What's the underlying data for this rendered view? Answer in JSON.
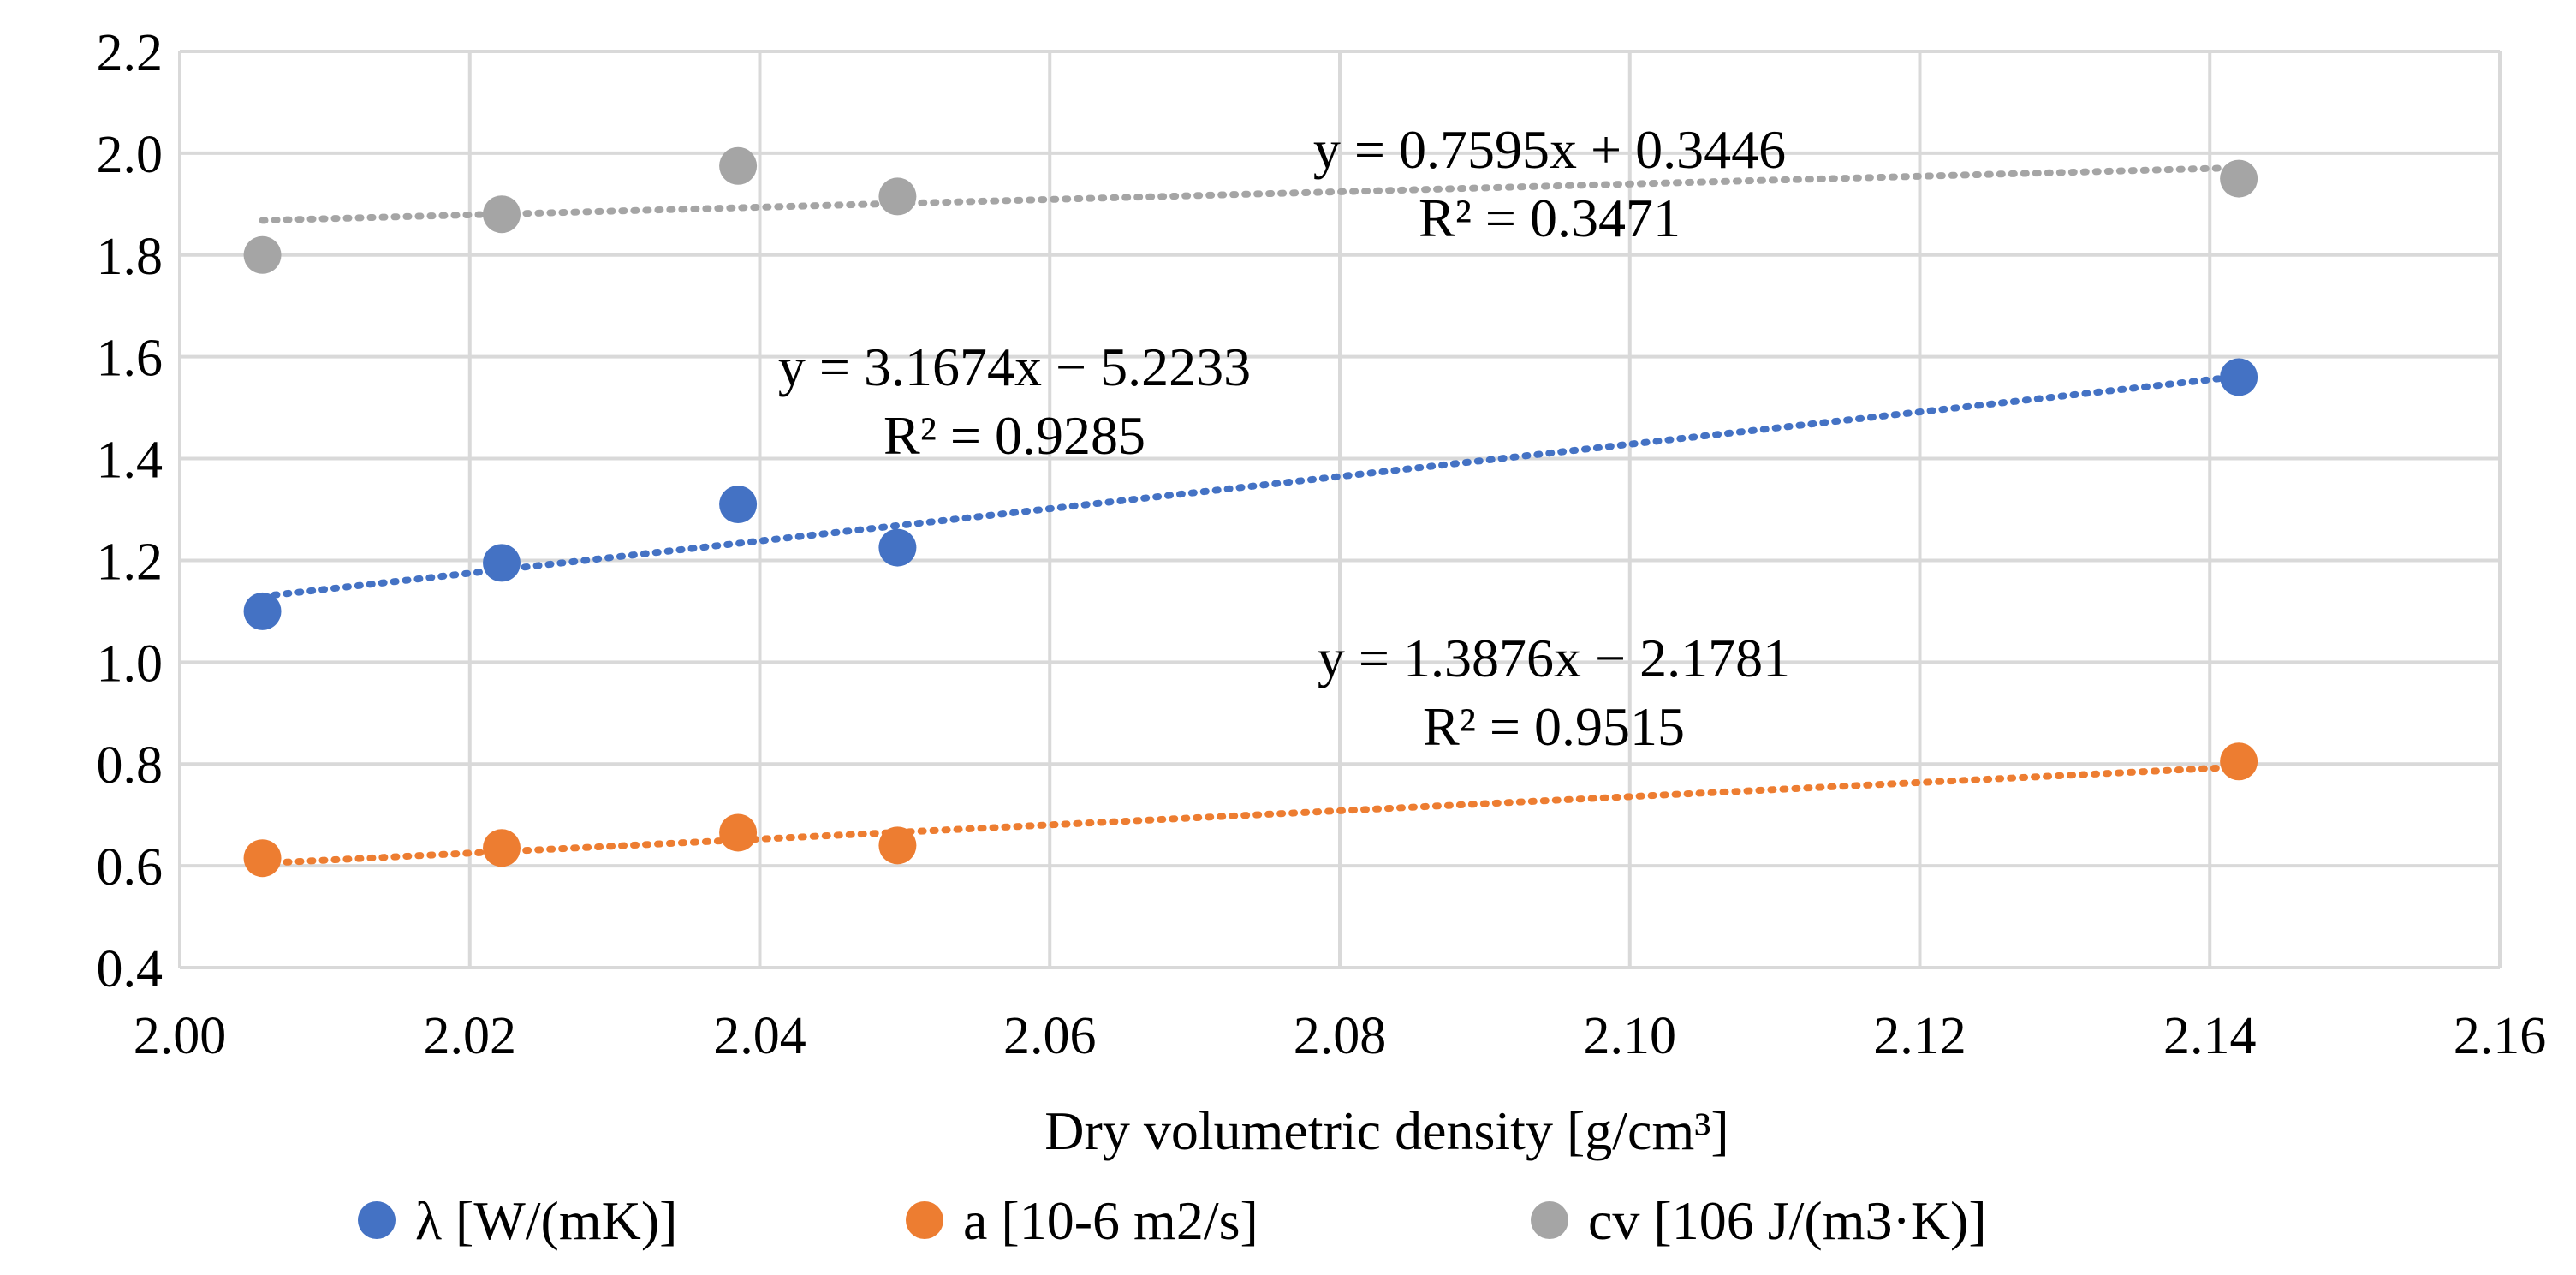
{
  "chart_data": {
    "type": "scatter",
    "title": "",
    "xlabel": "Dry volumetric density [g/cm³]",
    "ylabel": "",
    "xlim": [
      2.0,
      2.16
    ],
    "ylim": [
      0.4,
      2.2
    ],
    "x_ticks": [
      "2.00",
      "2.02",
      "2.04",
      "2.06",
      "2.08",
      "2.10",
      "2.12",
      "2.14",
      "2.16"
    ],
    "y_ticks": [
      "0.4",
      "0.6",
      "0.8",
      "1.0",
      "1.2",
      "1.4",
      "1.6",
      "1.8",
      "2.0",
      "2.2"
    ],
    "grid": true,
    "legend_position": "bottom",
    "series": [
      {
        "name": "λ  [W/(mK)]",
        "color": "#4472C4",
        "x": [
          2.0057,
          2.0222,
          2.0385,
          2.0495,
          2.142
        ],
        "y": [
          1.1,
          1.195,
          1.31,
          1.225,
          1.56
        ],
        "trendline": {
          "slope": 3.1674,
          "intercept": -5.2233,
          "equation": "y = 3.1674x − 5.2233",
          "r2": "R² = 0.9285"
        }
      },
      {
        "name": "a   [10-6 m2/s]",
        "color": "#ED7D31",
        "x": [
          2.0057,
          2.0222,
          2.0385,
          2.0495,
          2.142
        ],
        "y": [
          0.615,
          0.635,
          0.665,
          0.64,
          0.805
        ],
        "trendline": {
          "slope": 1.3876,
          "intercept": -2.1781,
          "equation": "y = 1.3876x − 2.1781",
          "r2": "R² = 0.9515"
        }
      },
      {
        "name": "cv  [106 J/(m3·K)]",
        "color": "#A5A5A5",
        "x": [
          2.0057,
          2.0222,
          2.0385,
          2.0495,
          2.142
        ],
        "y": [
          1.8,
          1.88,
          1.975,
          1.915,
          1.95
        ],
        "trendline": {
          "slope": 0.7595,
          "intercept": 0.3446,
          "equation": "y = 0.7595x + 0.3446",
          "r2": "R² = 0.3471"
        }
      }
    ]
  }
}
